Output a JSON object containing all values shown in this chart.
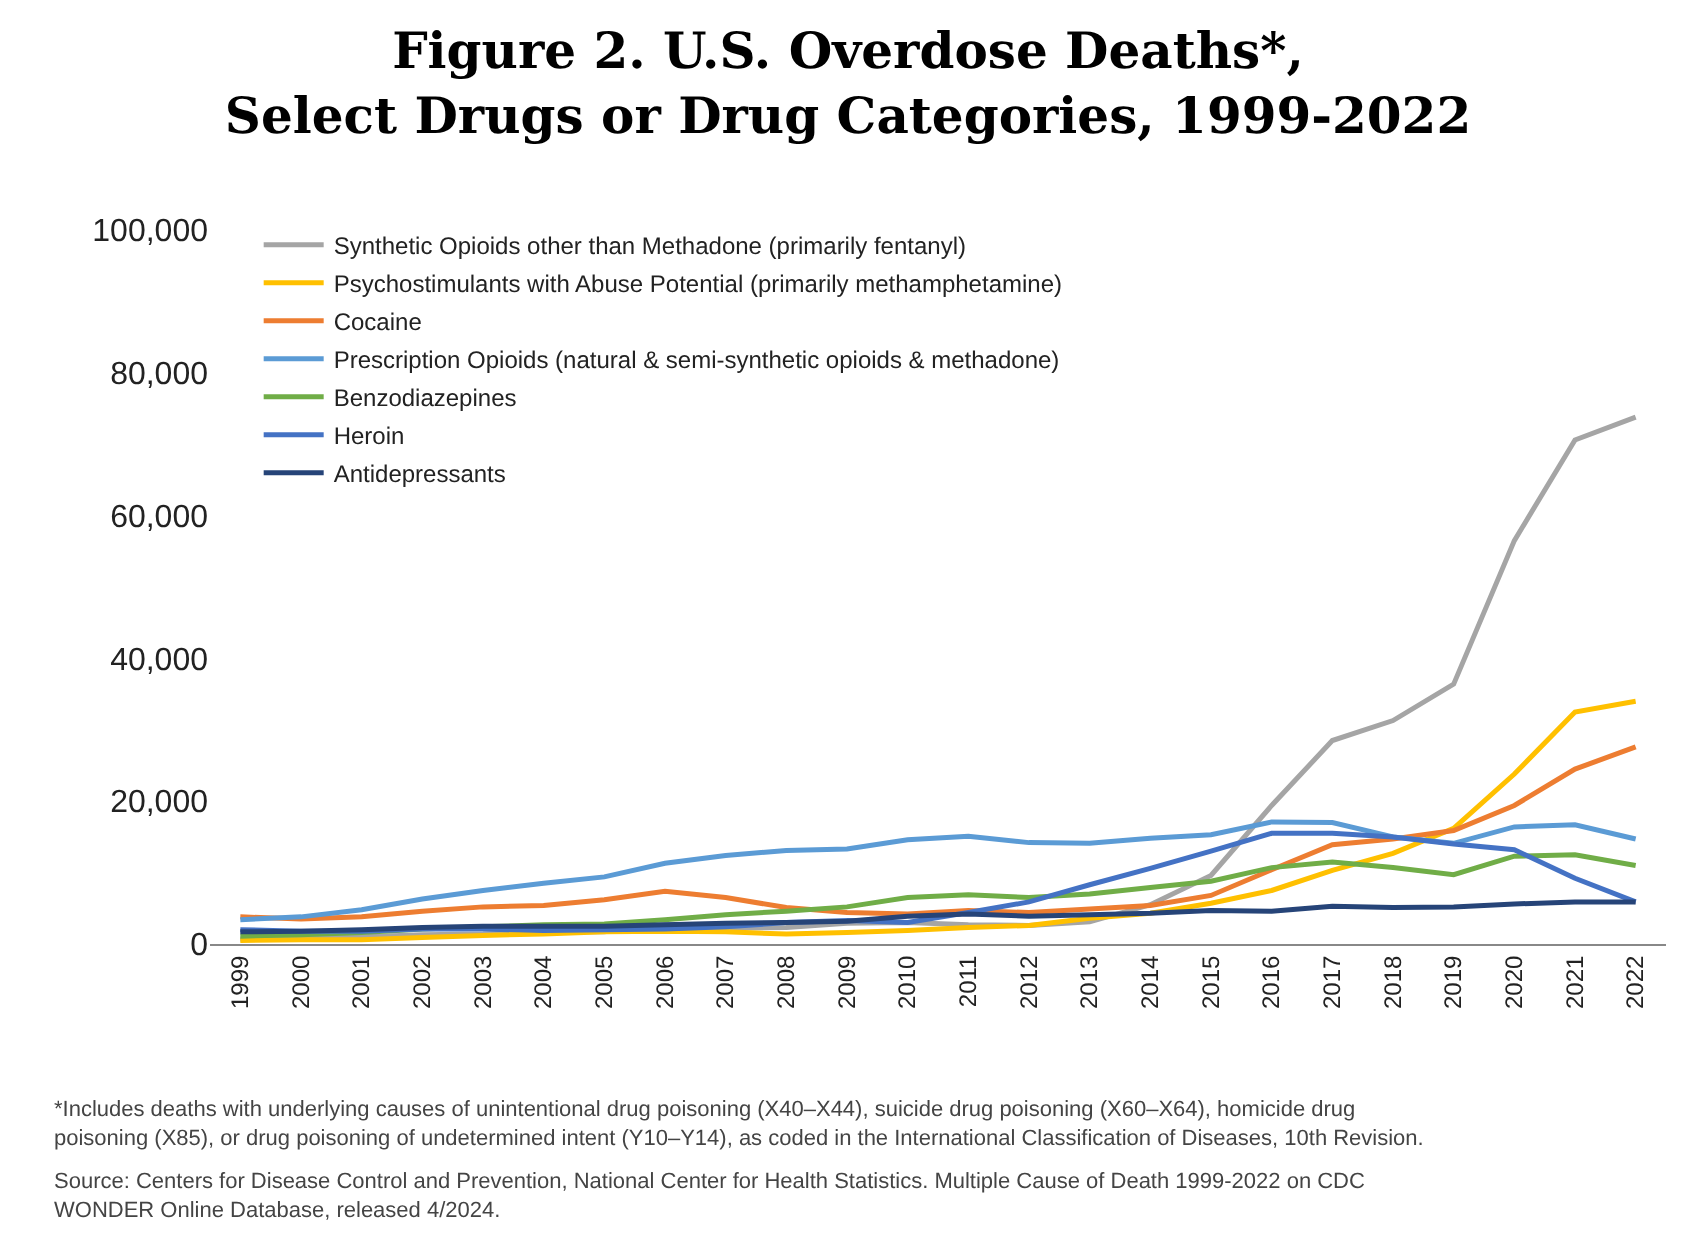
{
  "chart_data": {
    "type": "line",
    "title": "Figure 2. U.S. Overdose Deaths*,\nSelect Drugs or Drug Categories, 1999-2022",
    "categories": [
      "1999",
      "2000",
      "2001",
      "2002",
      "2003",
      "2004",
      "2005",
      "2006",
      "2007",
      "2008",
      "2009",
      "2010",
      "2011",
      "2012",
      "2013",
      "2014",
      "2015",
      "2016",
      "2017",
      "2018",
      "2019",
      "2020",
      "2021",
      "2022"
    ],
    "series": [
      {
        "name": "Synthetic Opioids other than Methadone (primarily fentanyl)",
        "color": "#a5a5a5",
        "values": [
          700,
          800,
          1000,
          1300,
          1400,
          1700,
          1700,
          2700,
          2200,
          2300,
          2900,
          3000,
          2700,
          2600,
          3100,
          5500,
          9600,
          19400,
          28500,
          31300,
          36400,
          56500,
          70600,
          73800
        ]
      },
      {
        "name": "Psychostimulants with Abuse Potential (primarily methamphetamine)",
        "color": "#ffc000",
        "values": [
          500,
          600,
          600,
          900,
          1200,
          1400,
          1700,
          1800,
          1700,
          1400,
          1600,
          1900,
          2300,
          2600,
          3600,
          4300,
          5700,
          7500,
          10300,
          12700,
          16200,
          23800,
          32500,
          34000
        ]
      },
      {
        "name": "Cocaine",
        "color": "#ed7d31",
        "values": [
          3800,
          3500,
          3800,
          4600,
          5200,
          5400,
          6200,
          7400,
          6500,
          5100,
          4400,
          4200,
          4700,
          4400,
          4900,
          5400,
          6800,
          10400,
          13900,
          14700,
          15900,
          19400,
          24500,
          27600
        ]
      },
      {
        "name": "Prescription Opioids (natural & semi-synthetic opioids & methadone)",
        "color": "#5b9bd5",
        "values": [
          3400,
          3800,
          4800,
          6300,
          7500,
          8500,
          9400,
          11300,
          12400,
          13100,
          13300,
          14600,
          15100,
          14200,
          14100,
          14800,
          15300,
          17100,
          17000,
          15000,
          14100,
          16400,
          16700,
          14700
        ]
      },
      {
        "name": "Benzodiazepines",
        "color": "#70ad47",
        "values": [
          1100,
          1300,
          1600,
          2100,
          2400,
          2700,
          2800,
          3400,
          4100,
          4600,
          5200,
          6500,
          6900,
          6500,
          7000,
          7900,
          8800,
          10700,
          11500,
          10700,
          9700,
          12300,
          12500,
          11000
        ]
      },
      {
        "name": "Heroin",
        "color": "#4472c4",
        "values": [
          2000,
          1800,
          1800,
          2100,
          2100,
          1900,
          2000,
          2100,
          2400,
          3000,
          3300,
          3000,
          4400,
          5900,
          8300,
          10600,
          13000,
          15500,
          15500,
          15000,
          14000,
          13200,
          9200,
          5900
        ]
      },
      {
        "name": "Antidepressants",
        "color": "#264478",
        "values": [
          1700,
          1800,
          2000,
          2300,
          2500,
          2500,
          2500,
          2700,
          2900,
          3000,
          3200,
          3900,
          4200,
          3900,
          4100,
          4300,
          4700,
          4600,
          5300,
          5100,
          5200,
          5600,
          5900,
          5900
        ]
      }
    ],
    "ylim": [
      0,
      100000
    ],
    "yticks": [
      0,
      {
        "value": 20000,
        "label": "20,000"
      },
      {
        "value": 40000,
        "label": "40,000"
      },
      {
        "value": 60000,
        "label": "60,000"
      },
      {
        "value": 80000,
        "label": "80,000"
      },
      {
        "value": 100000,
        "label": "100,000"
      }
    ],
    "legend": "top left",
    "annotations": [
      "*Includes deaths with underlying causes of unintentional drug poisoning (X40–X44), suicide drug poisoning (X60–X64), homicide drug\npoisoning (X85), or drug poisoning of undetermined intent (Y10–Y14), as coded in the International Classification of Diseases, 10th Revision.",
      "Source: Centers for Disease Control and Prevention, National Center for Health Statistics. Multiple Cause of Death 1999-2022 on CDC\nWONDER Online Database, released 4/2024."
    ]
  }
}
